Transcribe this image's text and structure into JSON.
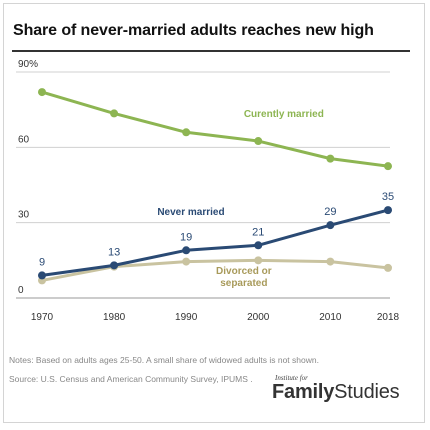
{
  "chart_data": {
    "type": "line",
    "title": "Share of never-married adults reaches new high",
    "x": [
      1970,
      1980,
      1990,
      2000,
      2010,
      2018
    ],
    "x_tick_labels": [
      "1970",
      "1980",
      "1990",
      "2000",
      "2010",
      "2018"
    ],
    "y_ticks": [
      0,
      30,
      60,
      90
    ],
    "y_tick_labels": [
      "0",
      "30",
      "60",
      "90%"
    ],
    "ylim": [
      0,
      90
    ],
    "grid": true,
    "series": [
      {
        "name": "Curently married",
        "color": "#8db552",
        "values": [
          82,
          73.5,
          66,
          62.5,
          55.5,
          52.5
        ],
        "label_year": 1998,
        "label_value": 72
      },
      {
        "name": "Never married",
        "color": "#2a4a74",
        "values": [
          9,
          13,
          19,
          21,
          29,
          35
        ],
        "data_labels": [
          "9",
          "13",
          "19",
          "21",
          "29",
          "35"
        ],
        "label_year": 1986,
        "label_value": 33
      },
      {
        "name": "Divorced or separated",
        "name_lines": [
          "Divorced or",
          "separated"
        ],
        "color": "#c9c3a0",
        "label_text_color": "#a89a5a",
        "values": [
          7,
          12.5,
          14.5,
          15,
          14.5,
          12
        ],
        "label_year": 1998,
        "label_value": 9.5
      }
    ]
  },
  "footer": {
    "notes": "Notes: Based on adults ages 25-50. A small share of widowed adults is not shown.",
    "source": "Source: U.S. Census and American Community Survey, IPUMS .",
    "logo_pre": "Institute for",
    "logo_bold": "Family",
    "logo_rest": "Studies"
  }
}
